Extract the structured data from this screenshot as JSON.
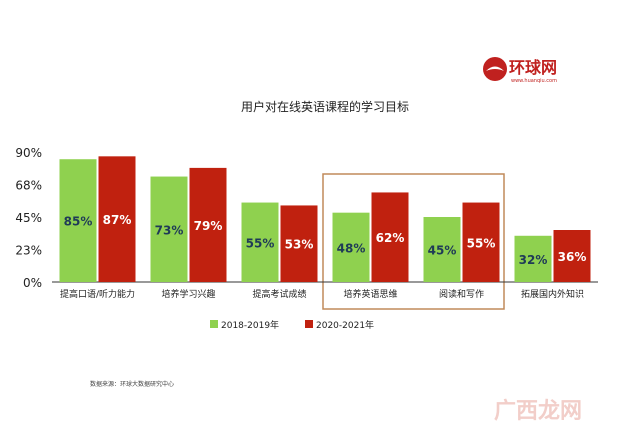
{
  "logo": {
    "name": "环球网",
    "url": "www.huanqiu.com",
    "color": "#c0211f"
  },
  "source_note": "数据来源：环球大数据研究中心",
  "watermark": "广西龙网",
  "highlight_color": "#c08a5a",
  "chart_data": {
    "type": "bar",
    "title": "用户对在线英语课程的学习目标",
    "categories": [
      "提高口语/听力能力",
      "培养学习兴趣",
      "提高考试成绩",
      "培养英语思维",
      "阅读和写作",
      "拓展国内外知识"
    ],
    "series": [
      {
        "name": "2018-2019年",
        "color": "#8fd14f",
        "values": [
          85,
          73,
          55,
          48,
          45,
          32
        ]
      },
      {
        "name": "2020-2021年",
        "color": "#c0210f",
        "values": [
          87,
          79,
          53,
          62,
          55,
          36
        ]
      }
    ],
    "ylim": [
      0,
      90
    ],
    "yticks": [
      "0%",
      "23%",
      "45%",
      "68%",
      "90%"
    ],
    "ytick_values": [
      0,
      22.5,
      45,
      67.5,
      90
    ],
    "value_suffix": "%",
    "highlighted_categories": [
      3,
      4
    ],
    "legend_position": "bottom",
    "grid": false
  }
}
